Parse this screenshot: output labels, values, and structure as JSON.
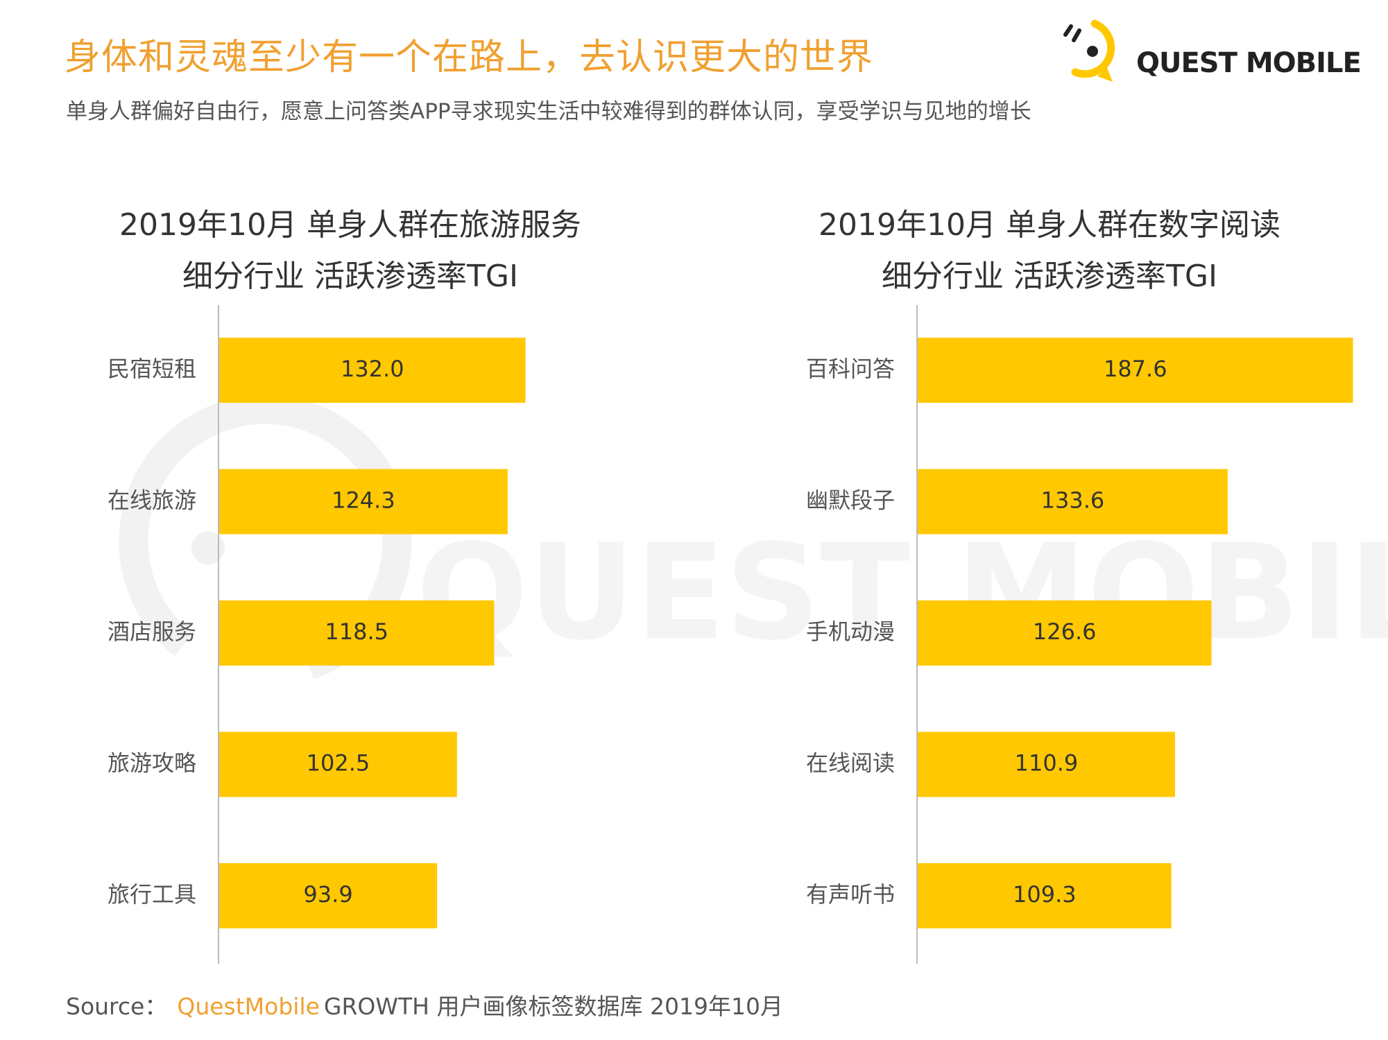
{
  "header": {
    "title": "身体和灵魂至少有一个在路上，去认识更大的世界",
    "subtitle": "单身人群偏好自由行，愿意上问答类APP寻求现实生活中较难得到的群体认同，享受学识与见地的增长"
  },
  "logo": {
    "text": "QUEST MOBILE",
    "icon": "quest-mobile-logo-icon"
  },
  "watermark": {
    "text": "QUEST MOBILE"
  },
  "colors": {
    "bar": "#FFC800",
    "accent": "#F0A030",
    "axis": "#BBBBBB"
  },
  "chart_data": [
    {
      "type": "bar",
      "orientation": "horizontal",
      "title": [
        "2019年10月 单身人群在旅游服务",
        "细分行业 活跃渗透率TGI"
      ],
      "categories": [
        "民宿短租",
        "在线旅游",
        "酒店服务",
        "旅游攻略",
        "旅行工具"
      ],
      "values": [
        132.0,
        124.3,
        118.5,
        102.5,
        93.9
      ],
      "value_labels": [
        "132.0",
        "124.3",
        "118.5",
        "102.5",
        "93.9"
      ]
    },
    {
      "type": "bar",
      "orientation": "horizontal",
      "title": [
        "2019年10月 单身人群在数字阅读",
        "细分行业 活跃渗透率TGI"
      ],
      "categories": [
        "百科问答",
        "幽默段子",
        "手机动漫",
        "在线阅读",
        "有声听书"
      ],
      "values": [
        187.6,
        133.6,
        126.6,
        110.9,
        109.3
      ],
      "value_labels": [
        "187.6",
        "133.6",
        "126.6",
        "110.9",
        "109.3"
      ]
    }
  ],
  "source": {
    "label": "Source：",
    "brand": "QuestMobile",
    "text": "GROWTH 用户画像标签数据库 2019年10月"
  }
}
